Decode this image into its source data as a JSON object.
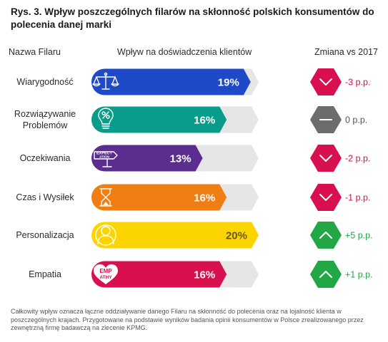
{
  "title": "Rys. 3. Wpływ poszczególnych filarów na skłonność polskich konsumentów do polecenia danej marki",
  "headers": {
    "name": "Nazwa Filaru",
    "impact": "Wpływ na doświadczenia klientów",
    "change": "Zmiana vs 2017"
  },
  "footnote": "Całkowity wpływ oznacza łączne oddziaływanie danego Filaru na skłonność do polecenia oraz na lojalność klienta w poszczególnych krajach. Przygotowane na podstawie wyników badania opinii konsumentów w Polsce zrealizowanego przez zewnętrzną firmę badawczą na zlecenie KPMG.",
  "chart_data": {
    "type": "bar",
    "orientation": "horizontal",
    "categories": [
      "Wiarygodność",
      "Rozwiązywanie Problemów",
      "Oczekiwania",
      "Czas i Wysiłek",
      "Personalizacja",
      "Empatia"
    ],
    "values": [
      19,
      16,
      13,
      16,
      20,
      16
    ],
    "value_labels": [
      "19%",
      "16%",
      "13%",
      "16%",
      "20%",
      "16%"
    ],
    "xlim": [
      0,
      20
    ],
    "colors": [
      "#1e49c8",
      "#0a9c8a",
      "#5b2d8e",
      "#f07e12",
      "#fcd500",
      "#d8104f"
    ],
    "icons": [
      "scales-icon",
      "lightbulb-icon",
      "expectation-sign-icon",
      "hourglass-icon",
      "person-icon",
      "empathy-heart-icon"
    ],
    "icon_texts": [
      "",
      "",
      "EXPECT ATION",
      "",
      "",
      "EMP ATHY"
    ],
    "changes": [
      "-3 p.p.",
      "0 p.p.",
      "-2 p.p.",
      "-1 p.p.",
      "+5 p.p.",
      "+1 p.p."
    ],
    "change_direction": [
      "down",
      "flat",
      "down",
      "down",
      "up",
      "up"
    ],
    "change_colors": {
      "down": "#d8104f",
      "flat": "#6d6d6d",
      "up": "#22a744"
    }
  }
}
